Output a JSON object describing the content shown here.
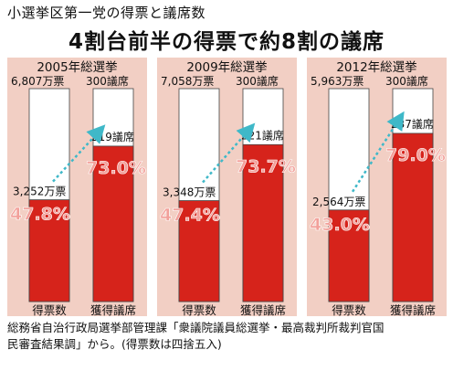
{
  "header": {
    "subtitle": "小選挙区第一党の得票と議席数",
    "title": "4割台前半の得票で約8割の議席"
  },
  "footer": {
    "line1": "総務省自治行政局選挙部管理課「衆議院議員総選挙・最高裁判所裁判官国",
    "line2": "民審査結果調」から。(得票数は四捨五入)"
  },
  "colors": {
    "panel_bg": "#f2cfc4",
    "bar_white": "#ffffff",
    "bar_red": "#d6231b",
    "arrow": "#3fb8c8",
    "pct_text": "#f2a09a"
  },
  "chart_data": [
    {
      "type": "bar",
      "title": "2005年総選挙",
      "categories": [
        "得票数",
        "獲得議席"
      ],
      "totals": {
        "votes_label": "6,807万票",
        "seats_label": "300議席"
      },
      "series": [
        {
          "values": [
            3252,
            219
          ],
          "value_labels": [
            "3,252万票",
            "219議席"
          ]
        },
        {
          "values": [
            47.8,
            73.0
          ],
          "value_labels": [
            "47.8%",
            "73.0%"
          ]
        }
      ],
      "share_max": 100
    },
    {
      "type": "bar",
      "title": "2009年総選挙",
      "categories": [
        "得票数",
        "獲得議席"
      ],
      "totals": {
        "votes_label": "7,058万票",
        "seats_label": "300議席"
      },
      "series": [
        {
          "values": [
            3348,
            221
          ],
          "value_labels": [
            "3,348万票",
            "221議席"
          ]
        },
        {
          "values": [
            47.4,
            73.7
          ],
          "value_labels": [
            "47.4%",
            "73.7%"
          ]
        }
      ],
      "share_max": 100
    },
    {
      "type": "bar",
      "title": "2012年総選挙",
      "categories": [
        "得票数",
        "獲得議席"
      ],
      "totals": {
        "votes_label": "5,963万票",
        "seats_label": "300議席"
      },
      "series": [
        {
          "values": [
            2564,
            237
          ],
          "value_labels": [
            "2,564万票",
            "237議席"
          ]
        },
        {
          "values": [
            43.0,
            79.0
          ],
          "value_labels": [
            "43.0%",
            "79.0%"
          ]
        }
      ],
      "share_max": 100
    }
  ]
}
